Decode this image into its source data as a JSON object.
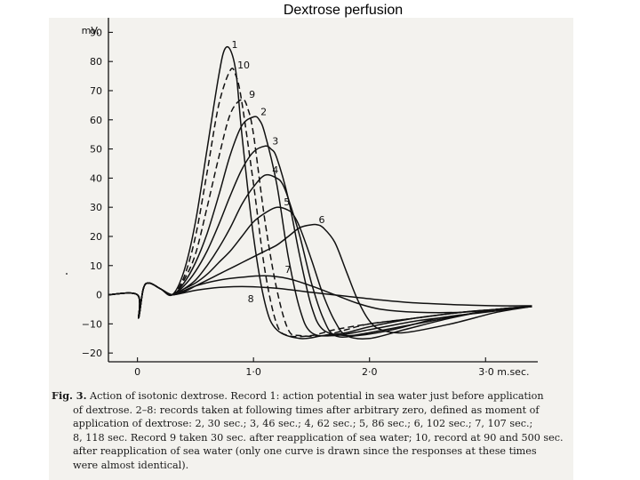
{
  "slide_title": "Dextrose perfusion",
  "chart_data": {
    "type": "line",
    "y_unit_label": "mV.",
    "x_unit_label": "m.sec.",
    "xlim": [
      -0.25,
      3.45
    ],
    "ylim": [
      -23,
      95
    ],
    "x_ticks": [
      0,
      1,
      2,
      3
    ],
    "x_tick_labels": [
      "0",
      "1·0",
      "2·0",
      "3·0 m.sec."
    ],
    "y_ticks": [
      90,
      80,
      70,
      60,
      50,
      40,
      30,
      20,
      10,
      0,
      -10,
      -20
    ],
    "y_tick_labels": [
      "90",
      "80",
      "70",
      "60",
      "50",
      "40",
      "30",
      "20",
      "10",
      "0",
      "−10",
      "−20"
    ],
    "series": [
      {
        "name": "1",
        "label": "1",
        "dashed": false,
        "x": [
          -0.25,
          0,
          0.01,
          0.05,
          0.1,
          0.2,
          0.3,
          0.4,
          0.5,
          0.6,
          0.7,
          0.75,
          0.8,
          0.85,
          0.9,
          1.0,
          1.1,
          1.2,
          1.4,
          1.6,
          1.8,
          2.0,
          2.4,
          2.8,
          3.1,
          3.4
        ],
        "y": [
          0,
          0,
          -8,
          2,
          4,
          2,
          0,
          8,
          25,
          50,
          75,
          84,
          84,
          76,
          55,
          20,
          -3,
          -12,
          -15,
          -14,
          -13,
          -11,
          -8,
          -6,
          -5,
          -4
        ]
      },
      {
        "name": "10",
        "label": "10",
        "dashed": true,
        "x": [
          -0.25,
          0,
          0.01,
          0.05,
          0.1,
          0.2,
          0.3,
          0.4,
          0.5,
          0.6,
          0.7,
          0.8,
          0.85,
          0.9,
          1.0,
          1.1,
          1.2,
          1.3,
          1.5,
          1.7,
          2.0,
          2.4,
          2.8,
          3.1,
          3.4
        ],
        "y": [
          0,
          0,
          -8,
          2,
          4,
          2,
          0,
          6,
          20,
          42,
          65,
          77,
          75,
          66,
          38,
          8,
          -10,
          -14,
          -14,
          -12,
          -10,
          -8,
          -6,
          -5,
          -4
        ]
      },
      {
        "name": "9",
        "label": "9",
        "dashed": true,
        "x": [
          -0.25,
          0,
          0.01,
          0.05,
          0.1,
          0.2,
          0.3,
          0.4,
          0.5,
          0.6,
          0.7,
          0.8,
          0.9,
          0.95,
          1.0,
          1.1,
          1.2,
          1.3,
          1.4,
          1.6,
          1.8,
          2.0,
          2.4,
          2.8,
          3.1,
          3.4
        ],
        "y": [
          0,
          0,
          -8,
          2,
          4,
          2,
          0,
          5,
          14,
          30,
          47,
          62,
          67,
          64,
          55,
          25,
          2,
          -12,
          -14,
          -14,
          -12,
          -10,
          -8,
          -6,
          -5,
          -4
        ]
      },
      {
        "name": "2",
        "label": "2",
        "dashed": false,
        "x": [
          -0.25,
          0,
          0.01,
          0.05,
          0.1,
          0.2,
          0.3,
          0.4,
          0.5,
          0.6,
          0.7,
          0.8,
          0.9,
          1.0,
          1.05,
          1.1,
          1.2,
          1.3,
          1.4,
          1.5,
          1.7,
          2.0,
          2.4,
          2.8,
          3.1,
          3.4
        ],
        "y": [
          0,
          0,
          -8,
          2,
          4,
          2,
          0,
          4,
          11,
          21,
          34,
          48,
          58,
          61,
          60,
          55,
          38,
          13,
          -5,
          -13,
          -14,
          -12,
          -9,
          -7,
          -5,
          -4
        ]
      },
      {
        "name": "3",
        "label": "3",
        "dashed": false,
        "x": [
          -0.25,
          0,
          0.01,
          0.05,
          0.1,
          0.2,
          0.3,
          0.4,
          0.5,
          0.6,
          0.7,
          0.8,
          0.9,
          1.0,
          1.1,
          1.15,
          1.2,
          1.3,
          1.4,
          1.5,
          1.6,
          1.8,
          2.0,
          2.4,
          2.8,
          3.1,
          3.4
        ],
        "y": [
          0,
          0,
          -8,
          2,
          4,
          2,
          0,
          3,
          8,
          15,
          24,
          34,
          43,
          49,
          51,
          50,
          47,
          33,
          13,
          -4,
          -12,
          -14,
          -13,
          -10,
          -7,
          -5,
          -4
        ]
      },
      {
        "name": "4",
        "label": "4",
        "dashed": false,
        "x": [
          -0.25,
          0,
          0.01,
          0.05,
          0.1,
          0.2,
          0.3,
          0.4,
          0.5,
          0.6,
          0.7,
          0.8,
          0.9,
          1.0,
          1.1,
          1.2,
          1.25,
          1.3,
          1.4,
          1.5,
          1.6,
          1.7,
          1.9,
          2.2,
          2.6,
          3.0,
          3.4
        ],
        "y": [
          0,
          0,
          -8,
          2,
          4,
          2,
          0,
          2,
          5,
          10,
          16,
          23,
          31,
          37,
          41,
          40,
          38,
          33,
          20,
          4,
          -8,
          -14,
          -14,
          -12,
          -8,
          -6,
          -4
        ]
      },
      {
        "name": "5",
        "label": "5",
        "dashed": false,
        "x": [
          -0.25,
          0,
          0.01,
          0.05,
          0.1,
          0.2,
          0.3,
          0.4,
          0.5,
          0.6,
          0.7,
          0.8,
          0.9,
          1.0,
          1.1,
          1.2,
          1.3,
          1.35,
          1.4,
          1.5,
          1.6,
          1.7,
          1.8,
          2.0,
          2.3,
          2.7,
          3.1,
          3.4
        ],
        "y": [
          0,
          0,
          -8,
          2,
          4,
          2,
          0,
          2,
          4,
          7,
          11,
          15,
          20,
          25,
          28,
          30,
          29,
          27,
          23,
          12,
          0,
          -9,
          -14,
          -15,
          -12,
          -8,
          -5,
          -4
        ]
      },
      {
        "name": "6",
        "label": "6",
        "dashed": false,
        "x": [
          -0.25,
          0,
          0.01,
          0.05,
          0.1,
          0.2,
          0.3,
          0.4,
          0.5,
          0.6,
          0.7,
          0.8,
          0.9,
          1.0,
          1.1,
          1.2,
          1.3,
          1.4,
          1.5,
          1.55,
          1.6,
          1.7,
          1.8,
          1.9,
          2.0,
          2.1,
          2.3,
          2.7,
          3.1,
          3.4
        ],
        "y": [
          0,
          0,
          -8,
          2,
          4,
          2,
          0,
          1,
          3,
          5,
          7,
          9,
          11,
          13,
          15,
          17,
          20,
          23,
          24,
          24,
          23,
          18,
          8,
          -2,
          -9,
          -12,
          -13,
          -10,
          -6,
          -4
        ]
      },
      {
        "name": "7",
        "label": "7",
        "dashed": false,
        "x": [
          -0.25,
          0,
          0.01,
          0.05,
          0.1,
          0.2,
          0.3,
          0.5,
          0.7,
          0.9,
          1.1,
          1.3,
          1.5,
          1.7,
          1.9,
          2.1,
          2.4,
          2.8,
          3.1,
          3.4
        ],
        "y": [
          0,
          0,
          -8,
          2,
          4,
          2,
          0,
          3,
          5,
          6,
          6.5,
          5.5,
          3,
          0,
          -3,
          -5,
          -6,
          -6,
          -5,
          -4
        ]
      },
      {
        "name": "8",
        "label": "8",
        "dashed": false,
        "x": [
          -0.25,
          0,
          0.01,
          0.05,
          0.1,
          0.2,
          0.3,
          0.5,
          0.7,
          0.9,
          1.1,
          1.3,
          1.5,
          1.8,
          2.1,
          2.4,
          2.8,
          3.1,
          3.4
        ],
        "y": [
          0,
          0,
          -8,
          2,
          4,
          2,
          0,
          1.5,
          2.5,
          2.8,
          2.5,
          1.8,
          0.8,
          -0.5,
          -1.8,
          -2.8,
          -3.5,
          -3.8,
          -3.8
        ]
      }
    ]
  },
  "caption": {
    "fig_label": "Fig. 3.",
    "lines": [
      "Action of isotonic dextrose. Record 1: action potential in sea water just before application",
      "of dextrose. 2–8: records taken at following times after arbitrary zero, defined as moment of",
      "application of dextrose: 2, 30 sec.; 3, 46 sec.; 4, 62 sec.; 5, 86 sec.; 6, 102 sec.; 7, 107 sec.;",
      "8, 118 sec. Record 9 taken 30 sec. after reapplication of sea water; 10, record at 90 and 500 sec.",
      "after reapplication of sea water (only one curve is drawn since the responses at these times",
      "were almost identical)."
    ]
  }
}
